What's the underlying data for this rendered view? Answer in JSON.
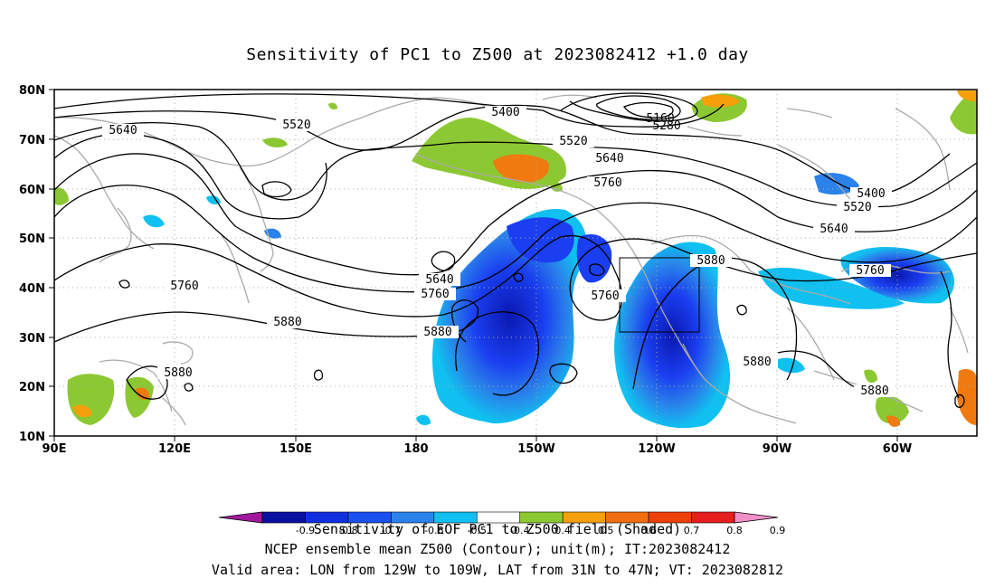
{
  "title": "Sensitivity of PC1 to Z500 at 2023082412 +1.0 day",
  "axes": {
    "lat_labels": [
      "80N",
      "70N",
      "60N",
      "50N",
      "40N",
      "30N",
      "20N",
      "10N"
    ],
    "lon_labels": [
      "90E",
      "120E",
      "150E",
      "180",
      "150W",
      "120W",
      "90W",
      "60W"
    ]
  },
  "contours": [
    {
      "value": "5640",
      "loc": "west"
    },
    {
      "value": "5520",
      "loc": "west"
    },
    {
      "value": "5400",
      "loc": "north-pacific"
    },
    {
      "value": "5520",
      "loc": "north-pacific"
    },
    {
      "value": "5640",
      "loc": "north-pacific"
    },
    {
      "value": "5760",
      "loc": "north-pacific"
    },
    {
      "value": "5160",
      "loc": "arctic-low"
    },
    {
      "value": "5280",
      "loc": "arctic-low"
    },
    {
      "value": "5640",
      "loc": "central-pacific"
    },
    {
      "value": "5760",
      "loc": "central-pacific"
    },
    {
      "value": "5760",
      "loc": "west-pacific"
    },
    {
      "value": "5880",
      "loc": "west-pacific"
    },
    {
      "value": "5880",
      "loc": "subtropical-pacific"
    },
    {
      "value": "5760",
      "loc": "cutoff-low"
    },
    {
      "value": "5880",
      "loc": "west-coast"
    },
    {
      "value": "5400",
      "loc": "atlantic"
    },
    {
      "value": "5520",
      "loc": "atlantic"
    },
    {
      "value": "5640",
      "loc": "atlantic"
    },
    {
      "value": "5760",
      "loc": "atlantic"
    },
    {
      "value": "5880",
      "loc": "gulf"
    },
    {
      "value": "5880",
      "loc": "caribbean"
    },
    {
      "value": "5880",
      "loc": "south-china-sea"
    }
  ],
  "valid_box": {
    "lon_from": "129W",
    "lon_to": "109W",
    "lat_from": "31N",
    "lat_to": "47N"
  },
  "colorbar": {
    "labels": [
      "-0.9",
      "-0.8",
      "-0.7",
      "-0.6",
      "-0.5",
      "-0.4",
      "0.4",
      "0.5",
      "0.6",
      "0.7",
      "0.8",
      "0.9"
    ],
    "colors": [
      "#a0199c",
      "#0a10a0",
      "#1030e0",
      "#1a4ff0",
      "#2a82ea",
      "#10c0f0",
      "#ffffff",
      "#8cc832",
      "#f5a00a",
      "#f06e10",
      "#f0400a",
      "#e61e1e",
      "#f090c8"
    ]
  },
  "footer": {
    "line1": "Sensitivity of EOF PC1 to Z500 field (Shaded)",
    "line2": "NCEP ensemble mean Z500 (Contour); unit(m); IT:2023082412",
    "line3": "Valid area: LON from 129W to 109W, LAT from 31N to 47N; VT: 2023082812"
  }
}
